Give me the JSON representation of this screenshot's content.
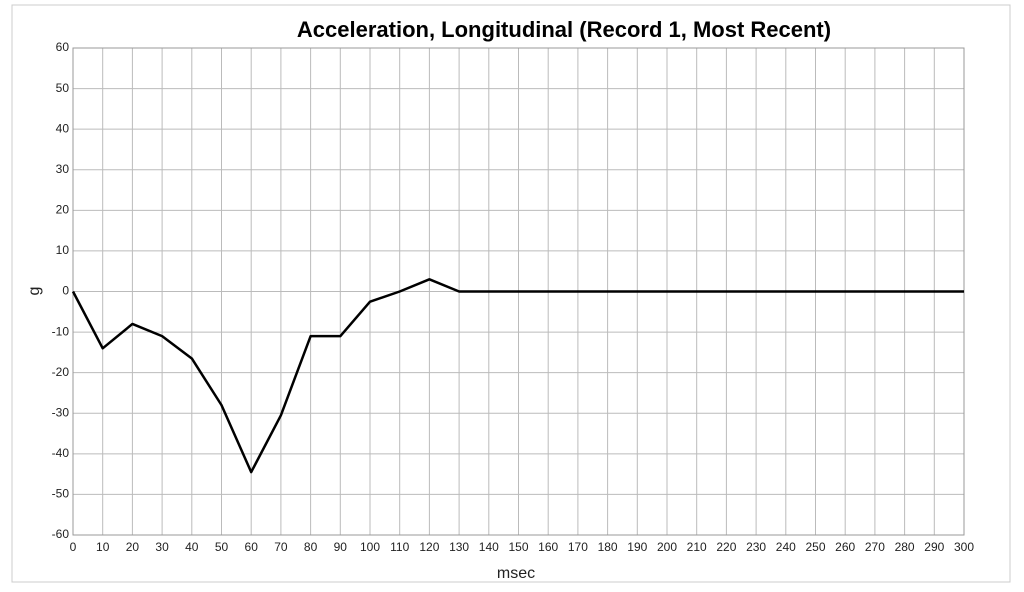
{
  "chart_data": {
    "type": "line",
    "title": "Acceleration, Longitudinal (Record 1, Most Recent)",
    "x_label": "msec",
    "y_label": "g",
    "x": [
      0,
      10,
      20,
      30,
      40,
      50,
      60,
      70,
      80,
      90,
      100,
      110,
      120,
      130,
      140,
      150,
      160,
      170,
      180,
      190,
      200,
      210,
      220,
      230,
      240,
      250,
      260,
      270,
      280,
      290,
      300
    ],
    "series": [
      {
        "name": "Longitudinal",
        "color": "#000000",
        "values": [
          0,
          -14,
          -8,
          -11,
          -16.5,
          -28,
          -44.5,
          -30.5,
          -11,
          -11,
          -2.5,
          0,
          3,
          0,
          0,
          0,
          0,
          0,
          0,
          0,
          0,
          0,
          0,
          0,
          0,
          0,
          0,
          0,
          0,
          0,
          0
        ]
      }
    ],
    "xlim": [
      0,
      300
    ],
    "ylim": [
      -60,
      60
    ],
    "xticks": [
      0,
      10,
      20,
      30,
      40,
      50,
      60,
      70,
      80,
      90,
      100,
      110,
      120,
      130,
      140,
      150,
      160,
      170,
      180,
      190,
      200,
      210,
      220,
      230,
      240,
      250,
      260,
      270,
      280,
      290,
      300
    ],
    "yticks": [
      -60,
      -50,
      -40,
      -30,
      -20,
      -10,
      0,
      10,
      20,
      30,
      40,
      50,
      60
    ],
    "grid": true
  }
}
